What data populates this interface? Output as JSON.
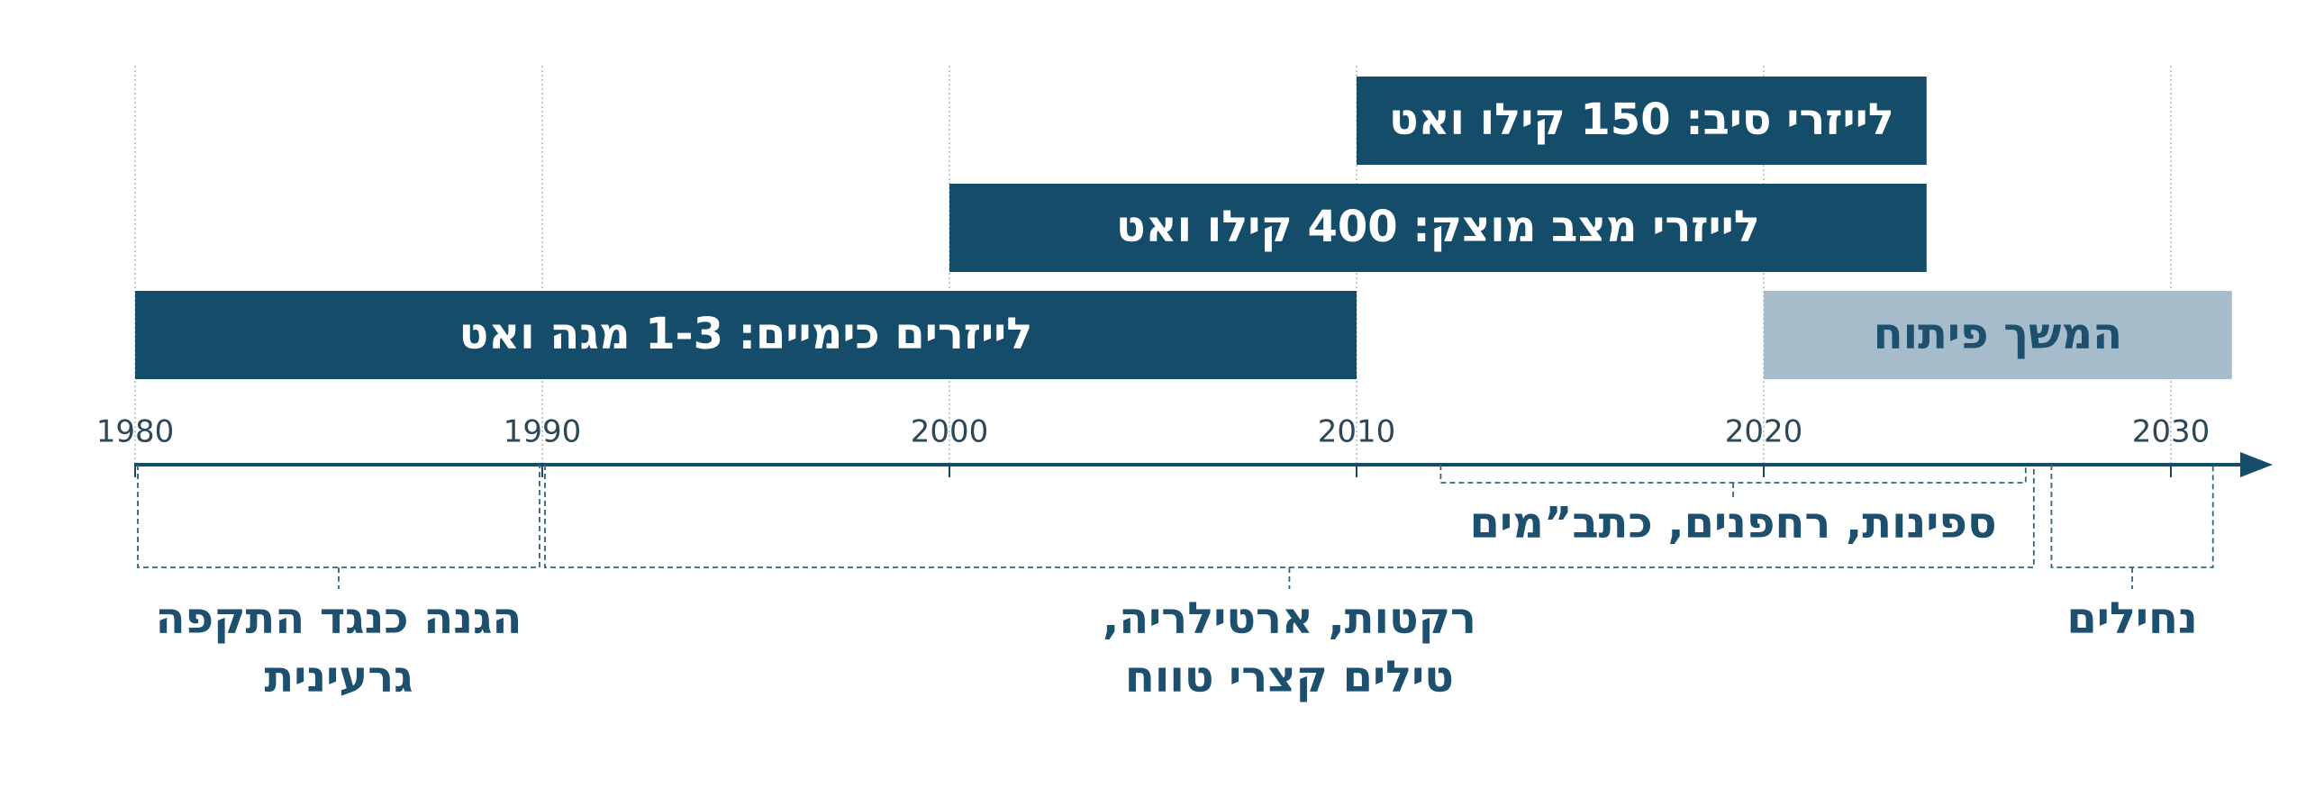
{
  "chart_data": {
    "type": "timeline",
    "xlim": [
      1980,
      2032.5
    ],
    "xticks": [
      1980,
      1990,
      2000,
      2010,
      2020,
      2030
    ],
    "grid": true,
    "axis_color": "#154c6a",
    "bars": [
      {
        "label": "לייזרי סיב: 150 קילו ואט",
        "start": 2010,
        "end": 2024,
        "color": "#154c6a",
        "text_color": "#ffffff"
      },
      {
        "label": "לייזרי מצב מוצק: 400 קילו ואט",
        "start": 2000,
        "end": 2024,
        "color": "#154c6a",
        "text_color": "#ffffff"
      },
      {
        "label": "לייזרים כימיים: 1-3 מגה ואט",
        "start": 1980,
        "end": 2010,
        "color": "#154c6a",
        "text_color": "#ffffff"
      },
      {
        "label": "המשך פיתוח",
        "start": 2020,
        "end": 2031.5,
        "color": "#a7bccb",
        "text_color": "#1d4f6e"
      }
    ],
    "brackets": [
      {
        "label": [
          "הגנה כנגד התקפה",
          "גרעינית"
        ],
        "start": 1980,
        "end": 1990,
        "placement": "below"
      },
      {
        "label": [
          "רקטות, ארטילריה,",
          "טילים קצרי טווח"
        ],
        "start": 1990,
        "end": 2026.7,
        "placement": "below"
      },
      {
        "label": [
          "ספינות, רחפנים, כתב”מים"
        ],
        "start": 2012,
        "end": 2026.5,
        "placement": "above"
      },
      {
        "label": [
          "נחילים"
        ],
        "start": 2027,
        "end": 2031.1,
        "placement": "below"
      }
    ]
  }
}
